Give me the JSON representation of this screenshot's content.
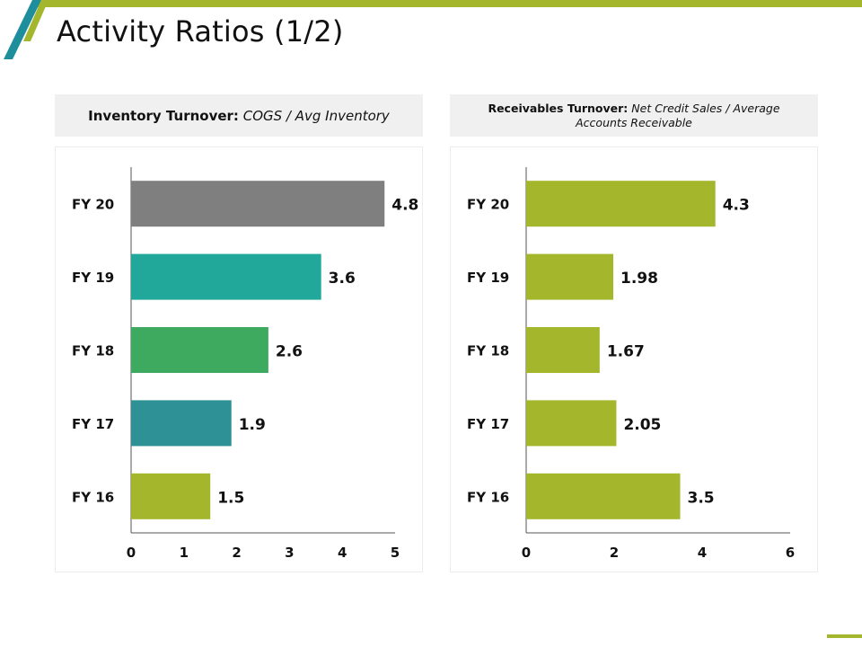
{
  "slide": {
    "title": "Activity Ratios (1/2)",
    "accent_color": "#a4b72c",
    "teal_color": "#1f8e9c"
  },
  "panels": {
    "left": {
      "header_bold": "Inventory Turnover:",
      "header_italic": "COGS / Avg Inventory"
    },
    "right": {
      "header_bold": "Receivables Turnover:",
      "header_italic": "Net Credit Sales / Average Accounts Receivable"
    }
  },
  "chart_data": [
    {
      "type": "bar",
      "orientation": "horizontal",
      "title": "Inventory Turnover: COGS / Avg Inventory",
      "categories": [
        "FY 20",
        "FY 19",
        "FY 18",
        "FY 17",
        "FY 16"
      ],
      "values": [
        4.8,
        3.6,
        2.6,
        1.9,
        1.5
      ],
      "value_labels": [
        "4.8",
        "3.6",
        "2.6",
        "1.9",
        "1.5"
      ],
      "colors": [
        "#7f7f7f",
        "#22a89b",
        "#3daa5f",
        "#2d9196",
        "#a4b72c"
      ],
      "xlim": [
        0,
        5
      ],
      "xticks": [
        0,
        1,
        2,
        3,
        4,
        5
      ],
      "xlabel": "",
      "ylabel": "",
      "grid": false,
      "legend": "none"
    },
    {
      "type": "bar",
      "orientation": "horizontal",
      "title": "Receivables Turnover: Net Credit Sales / Average Accounts Receivable",
      "categories": [
        "FY 20",
        "FY 19",
        "FY 18",
        "FY 17",
        "FY 16"
      ],
      "values": [
        4.3,
        1.98,
        1.67,
        2.05,
        3.5
      ],
      "value_labels": [
        "4.3",
        "1.98",
        "1.67",
        "2.05",
        "3.5"
      ],
      "colors": [
        "#a4b72c",
        "#a4b72c",
        "#a4b72c",
        "#a4b72c",
        "#a4b72c"
      ],
      "xlim": [
        0,
        6
      ],
      "xticks": [
        0,
        2,
        4,
        6
      ],
      "xlabel": "",
      "ylabel": "",
      "grid": false,
      "legend": "none"
    }
  ]
}
